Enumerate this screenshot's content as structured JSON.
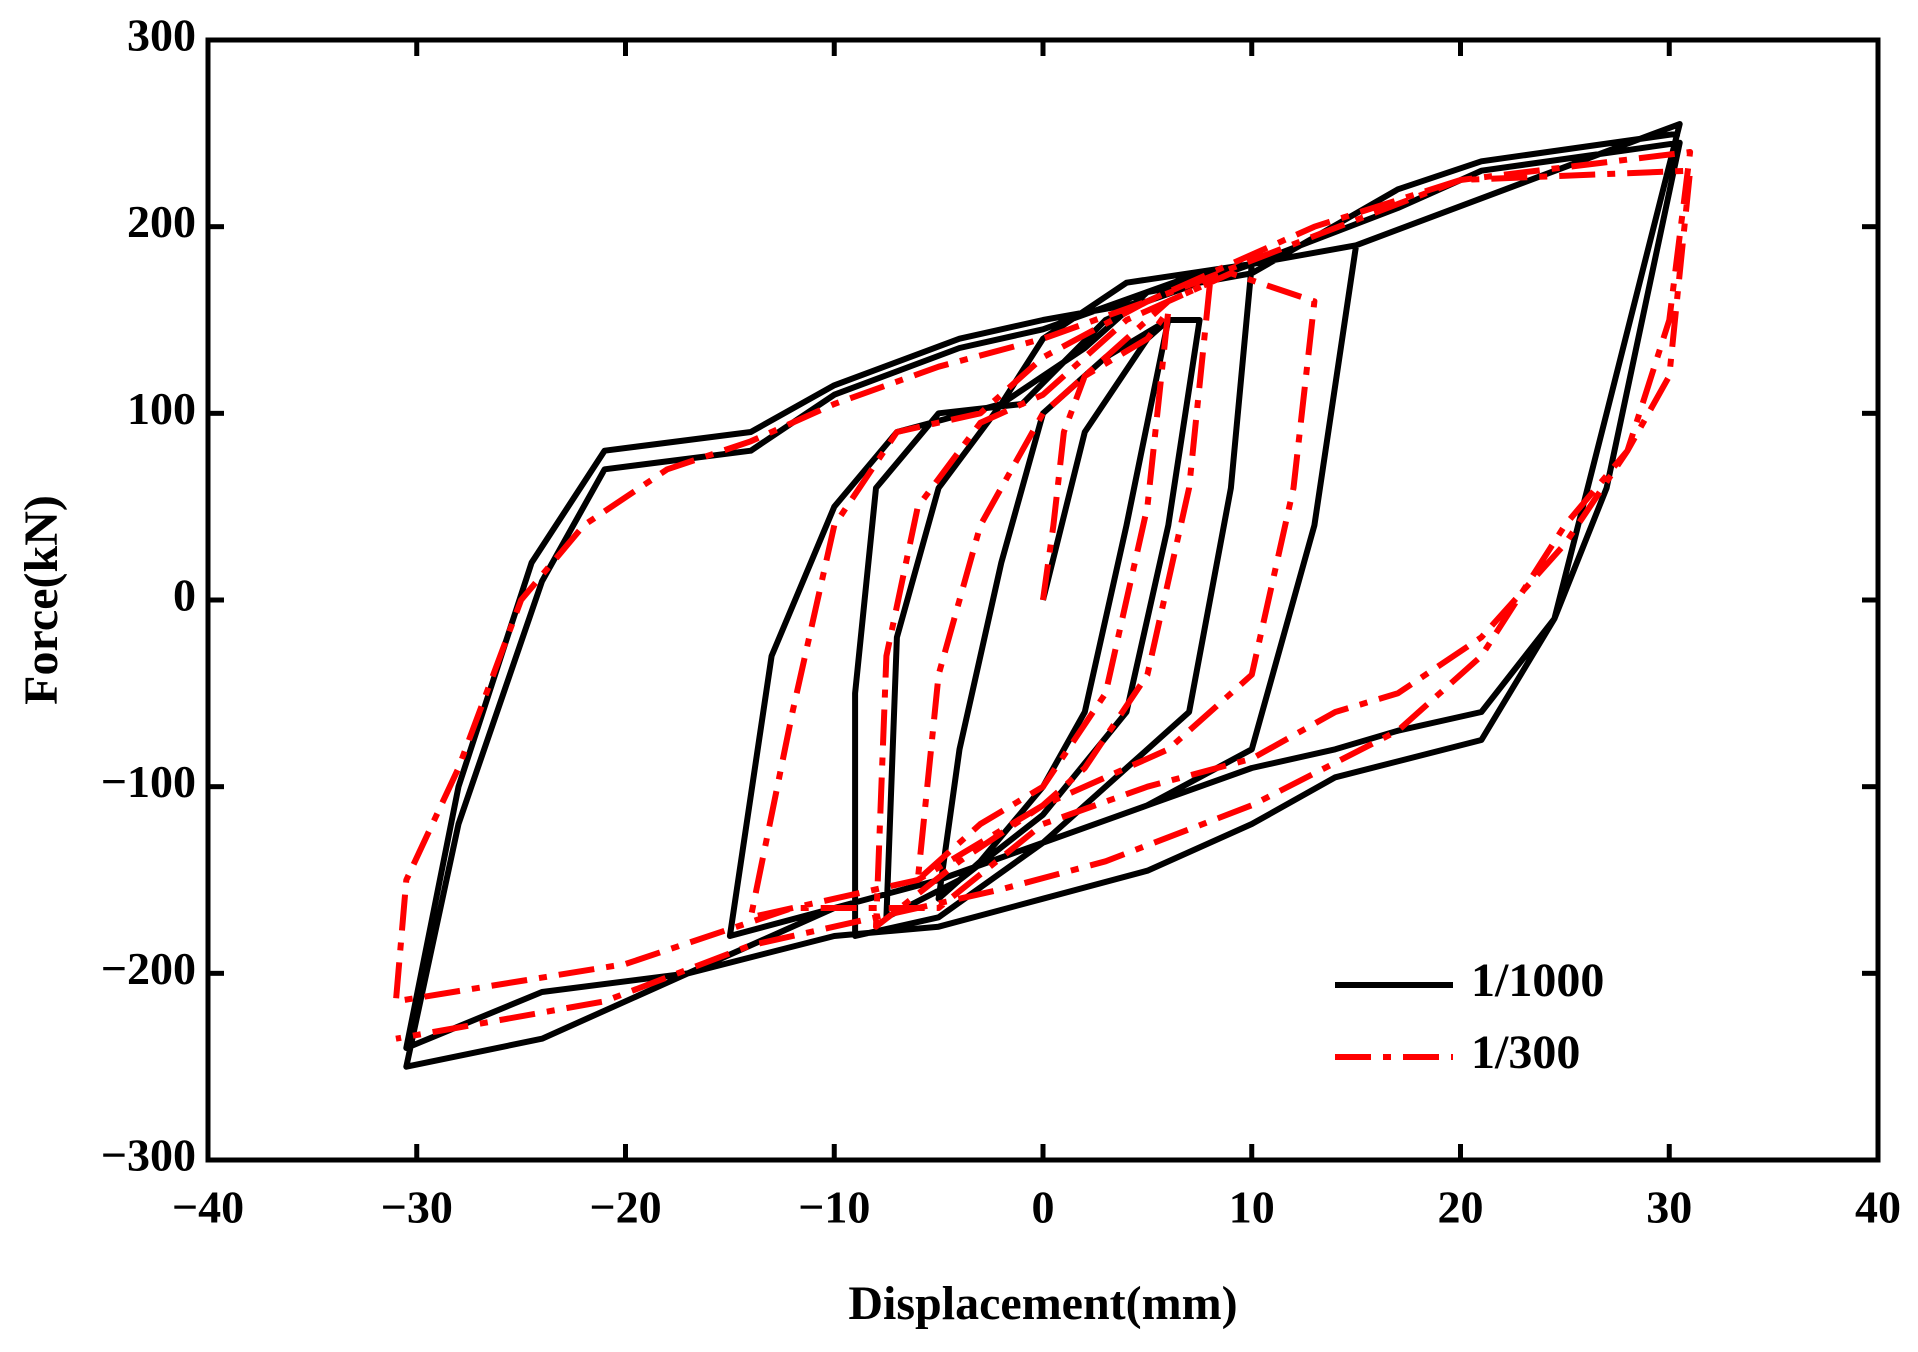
{
  "chart_data": {
    "type": "line",
    "x_label": "Displacement(mm)",
    "y_label": "Force(kN)",
    "xlim": [
      -40,
      40
    ],
    "ylim": [
      -300,
      300
    ],
    "xticks": [
      {
        "value": -40,
        "label": "−40"
      },
      {
        "value": -30,
        "label": "−30"
      },
      {
        "value": -20,
        "label": "−20"
      },
      {
        "value": -10,
        "label": "−10"
      },
      0,
      10,
      20,
      30,
      40
    ],
    "yticks": [
      {
        "value": -300,
        "label": "−300"
      },
      {
        "value": -200,
        "label": "−200"
      },
      {
        "value": -100,
        "label": "−100"
      },
      0,
      100,
      200,
      300
    ],
    "legend": "lower right",
    "series": [
      {
        "name": "1/1000",
        "color": "#000000",
        "dash": "solid",
        "x": [
          0,
          2,
          5,
          6,
          4,
          2,
          0,
          -3,
          -5,
          -4,
          -2,
          0,
          3,
          6,
          7.5,
          6,
          4,
          0,
          -4,
          -7.5,
          -7,
          -5,
          -2,
          2,
          5,
          7.5,
          10,
          9,
          7,
          3,
          0,
          -5,
          -9,
          -9,
          -8,
          -5,
          -1,
          3,
          7,
          10,
          15,
          13,
          10,
          5,
          0,
          -5,
          -10,
          -15,
          -13,
          -10,
          -7,
          -2,
          0,
          4,
          10,
          15,
          30.5,
          27,
          24.5,
          21,
          17,
          14,
          10,
          5,
          0,
          -5,
          -10,
          -17,
          -24,
          -30.5,
          -28,
          -24.5,
          -21,
          -14,
          -10,
          -4,
          0,
          5,
          10,
          17,
          21,
          30.5,
          27,
          24.5,
          21,
          14,
          10,
          5,
          0,
          -5,
          -10,
          -17,
          -24,
          -30.5,
          -28,
          -24,
          -21,
          -14,
          -10,
          -4,
          0,
          5,
          10,
          17,
          21,
          30.5
        ],
        "values": [
          0,
          90,
          140,
          150,
          40,
          -60,
          -100,
          -140,
          -160,
          -80,
          20,
          100,
          130,
          150,
          150,
          40,
          -60,
          -115,
          -150,
          -170,
          -20,
          60,
          105,
          135,
          165,
          175,
          180,
          60,
          -60,
          -100,
          -130,
          -170,
          -180,
          -50,
          60,
          100,
          105,
          150,
          170,
          180,
          190,
          40,
          -80,
          -110,
          -130,
          -150,
          -165,
          -180,
          -30,
          50,
          90,
          105,
          140,
          170,
          180,
          190,
          255,
          100,
          -10,
          -60,
          -70,
          -80,
          -90,
          -110,
          -130,
          -150,
          -165,
          -200,
          -210,
          -240,
          -100,
          20,
          80,
          90,
          115,
          140,
          150,
          160,
          180,
          210,
          230,
          245,
          60,
          -10,
          -75,
          -95,
          -120,
          -145,
          -160,
          -175,
          -180,
          -200,
          -235,
          -250,
          -120,
          10,
          70,
          80,
          110,
          135,
          145,
          165,
          175,
          220,
          235,
          250
        ]
      },
      {
        "name": "1/300",
        "color": "#ff0000",
        "dash": "dashdot",
        "x": [
          0,
          0.5,
          1,
          2,
          5,
          6,
          5,
          3,
          0,
          -3,
          -6,
          -5,
          -3,
          0,
          3,
          6,
          8,
          7,
          5,
          2,
          0,
          -4,
          -8,
          -7.5,
          -6,
          -3,
          0,
          4,
          9,
          13,
          12,
          10,
          6,
          0,
          -6,
          -12,
          -14,
          -12,
          -10,
          -7,
          -3,
          0,
          5,
          13,
          20,
          31,
          30,
          28,
          25,
          21,
          17,
          14,
          10,
          5,
          0,
          -5,
          -12,
          -20,
          -31,
          -30.5,
          -28,
          -25,
          -22,
          -18,
          -14,
          -10,
          -5,
          0,
          5,
          13,
          20,
          31,
          30,
          28,
          25,
          21,
          17,
          10,
          3,
          -2,
          -8,
          -14,
          -21,
          -31
        ],
        "values": [
          0,
          40,
          90,
          120,
          140,
          155,
          50,
          -50,
          -100,
          -120,
          -150,
          -40,
          40,
          100,
          130,
          160,
          170,
          60,
          -40,
          -90,
          -110,
          -140,
          -175,
          -30,
          50,
          95,
          110,
          150,
          175,
          160,
          60,
          -40,
          -80,
          -110,
          -150,
          -165,
          -170,
          -60,
          40,
          90,
          100,
          130,
          160,
          195,
          225,
          240,
          150,
          80,
          30,
          -20,
          -50,
          -60,
          -85,
          -100,
          -120,
          -165,
          -165,
          -195,
          -215,
          -150,
          -90,
          0,
          40,
          70,
          85,
          105,
          125,
          140,
          160,
          200,
          225,
          230,
          120,
          80,
          40,
          -30,
          -70,
          -110,
          -140,
          -155,
          -170,
          -185,
          -215,
          -235
        ]
      }
    ]
  }
}
